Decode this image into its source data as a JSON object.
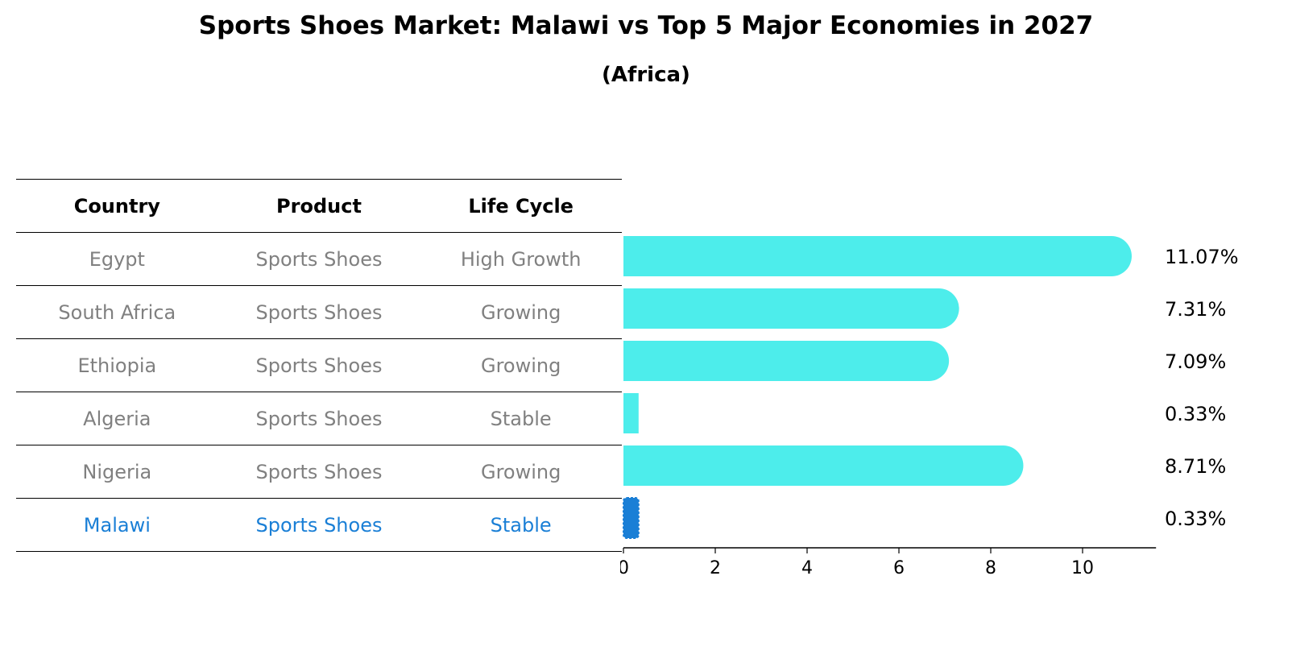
{
  "title": "Sports Shoes Market: Malawi vs Top 5 Major Economies in 2027",
  "subtitle": "(Africa)",
  "table": {
    "headers": [
      "Country",
      "Product",
      "Life Cycle"
    ],
    "rows": [
      {
        "country": "Egypt",
        "product": "Sports Shoes",
        "life_cycle": "High Growth"
      },
      {
        "country": "South Africa",
        "product": "Sports Shoes",
        "life_cycle": "Growing"
      },
      {
        "country": "Ethiopia",
        "product": "Sports Shoes",
        "life_cycle": "Growing"
      },
      {
        "country": "Algeria",
        "product": "Sports Shoes",
        "life_cycle": "Stable"
      },
      {
        "country": "Nigeria",
        "product": "Sports Shoes",
        "life_cycle": "Growing"
      },
      {
        "country": "Malawi",
        "product": "Sports Shoes",
        "life_cycle": "Stable"
      }
    ]
  },
  "colors": {
    "bar": "#4dedeb",
    "highlight": "#1a7fd6",
    "muted_text": "#808080"
  },
  "chart_data": {
    "type": "bar",
    "orientation": "horizontal",
    "categories": [
      "Egypt",
      "South Africa",
      "Ethiopia",
      "Algeria",
      "Nigeria",
      "Malawi"
    ],
    "values": [
      11.07,
      7.31,
      7.09,
      0.33,
      8.71,
      0.33
    ],
    "value_labels": [
      "11.07%",
      "7.31%",
      "7.09%",
      "0.33%",
      "8.71%",
      "0.33%"
    ],
    "highlight": "Malawi",
    "xlim": [
      0,
      11.6
    ],
    "xticks": [
      0,
      2,
      4,
      6,
      8,
      10
    ],
    "xtick_labels": [
      "0",
      "2",
      "4",
      "6",
      "8",
      "10"
    ],
    "xlabel": "",
    "ylabel": ""
  }
}
